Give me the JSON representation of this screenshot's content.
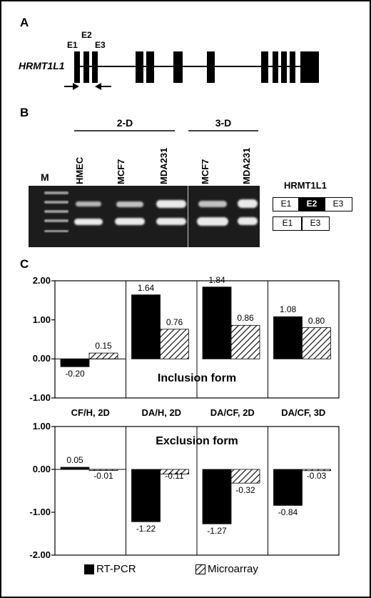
{
  "panels": {
    "a": "A",
    "b": "B",
    "c": "C"
  },
  "gene": {
    "name": "HRMT1L1",
    "exon_labels": [
      "E1",
      "E2",
      "E3"
    ]
  },
  "gel": {
    "groups": [
      "2-D",
      "3-D"
    ],
    "marker": "M",
    "lanes": [
      "HMEC",
      "MCF7",
      "MDA231",
      "MCF7",
      "MDA231"
    ],
    "right_label": "HRMT1L1",
    "inclusion_boxes": [
      "E1",
      "E2",
      "E3"
    ],
    "exclusion_boxes": [
      "E1",
      "E3"
    ]
  },
  "chart_data": [
    {
      "type": "bar",
      "title": "Inclusion form",
      "categories": [
        "CF/H, 2D",
        "DA/H, 2D",
        "DA/CF, 2D",
        "DA/CF, 3D"
      ],
      "series": [
        {
          "name": "RT-PCR",
          "values": [
            -0.2,
            1.64,
            1.84,
            1.08
          ]
        },
        {
          "name": "Microarray",
          "values": [
            0.15,
            0.76,
            0.86,
            0.8
          ]
        }
      ],
      "value_labels": {
        "RT-PCR": [
          "-0.20",
          "1.64",
          "1.84",
          "1.08"
        ],
        "Microarray": [
          "0.15",
          "0.76",
          "0.86",
          "0.80"
        ]
      },
      "ylim": [
        -1.0,
        2.0
      ],
      "yticks": [
        "2.00",
        "1.00",
        "0.00",
        "-1.00"
      ],
      "ytick_values": [
        2.0,
        1.0,
        0.0,
        -1.0
      ]
    },
    {
      "type": "bar",
      "title": "Exclusion form",
      "categories": [
        "CF/H, 2D",
        "DA/H, 2D",
        "DA/CF, 2D",
        "DA/CF, 3D"
      ],
      "series": [
        {
          "name": "RT-PCR",
          "values": [
            0.05,
            -1.22,
            -1.27,
            -0.84
          ]
        },
        {
          "name": "Microarray",
          "values": [
            -0.01,
            -0.11,
            -0.32,
            -0.03
          ]
        }
      ],
      "value_labels": {
        "RT-PCR": [
          "0.05",
          "-1.22",
          "-1.27",
          "-0.84"
        ],
        "Microarray": [
          "-0.01",
          "-0.11",
          "-0.32",
          "-0.03"
        ]
      },
      "ylim": [
        -2.0,
        1.0
      ],
      "yticks": [
        "1.00",
        "0.00",
        "-1.00",
        "-2.00"
      ],
      "ytick_values": [
        1.0,
        0.0,
        -1.0,
        -2.0
      ]
    }
  ],
  "legend": {
    "items": [
      "RT-PCR",
      "Microarray"
    ]
  },
  "colors": {
    "rtpcr": "#000000",
    "microarray_hatch": "#000000",
    "gel": "#1c1c1c"
  }
}
